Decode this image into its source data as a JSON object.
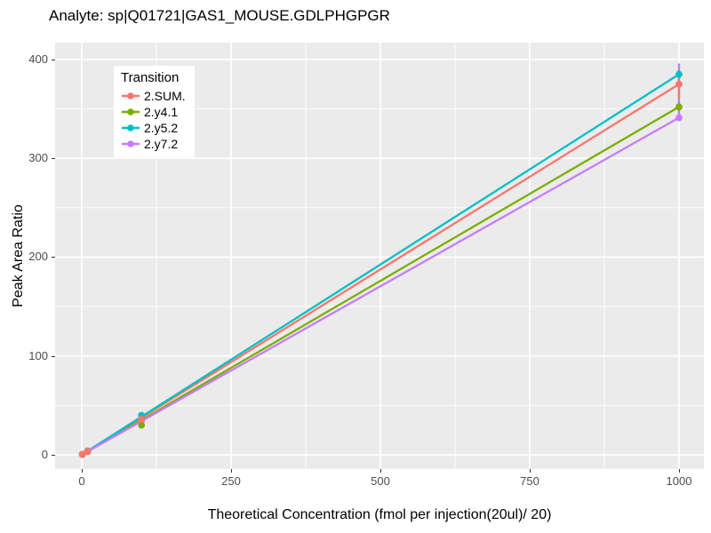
{
  "title": "Analyte: sp|Q01721|GAS1_MOUSE.GDLPHGPGR",
  "chart_data": {
    "type": "line",
    "title": "Analyte: sp|Q01721|GAS1_MOUSE.GDLPHGPGR",
    "xlabel": "Theoretical Concentration (fmol per injection(20ul)/ 20)",
    "ylabel": "Peak Area Ratio",
    "legend_title": "Transition",
    "legend_position": "inside-top-left",
    "grid": "major-and-minor-white-on-grey",
    "xlim": [
      -44.6,
      1041.7
    ],
    "ylim": [
      -14.4,
      417.0
    ],
    "x_ticks": [
      0,
      250,
      500,
      750,
      1000
    ],
    "y_ticks": [
      0,
      100,
      200,
      300,
      400
    ],
    "x_minor_ticks": [
      125,
      375,
      625,
      875
    ],
    "y_minor_ticks": [
      50,
      150,
      250,
      350
    ],
    "x": [
      1,
      10,
      100,
      1000
    ],
    "series": [
      {
        "name": "2.SUM.",
        "color": "#F8766D",
        "values": [
          0.4,
          3.7,
          36,
          375
        ],
        "errorbar_x": 1000,
        "errorbar_range": [
          360,
          383
        ]
      },
      {
        "name": "2.y4.1",
        "color": "#7CAE00",
        "values": [
          0.3,
          3.2,
          30,
          352
        ],
        "errorbar_x": 1000,
        "errorbar_range": [
          348,
          356
        ]
      },
      {
        "name": "2.y5.2",
        "color": "#00BFC4",
        "values": [
          0.4,
          4.0,
          40,
          385
        ],
        "errorbar_x": 1000,
        "errorbar_range": [
          381,
          389
        ]
      },
      {
        "name": "2.y7.2",
        "color": "#C77CFF",
        "values": [
          0.3,
          3.3,
          34,
          341
        ],
        "errorbar_x": 1000,
        "errorbar_range": [
          341,
          396
        ]
      }
    ],
    "errorbar_draw_order": [
      "2.y7.2",
      "2.SUM.",
      "2.y4.1",
      "2.y5.2"
    ],
    "point_draw_order": [
      "2.y7.2",
      "2.y4.1",
      "2.y5.2",
      "2.SUM."
    ]
  },
  "panel": {
    "bg": "#EBEBEB",
    "grid_color": "#FFFFFF",
    "tick_color": "#333333",
    "tick_label_color": "#4D4D4D"
  }
}
